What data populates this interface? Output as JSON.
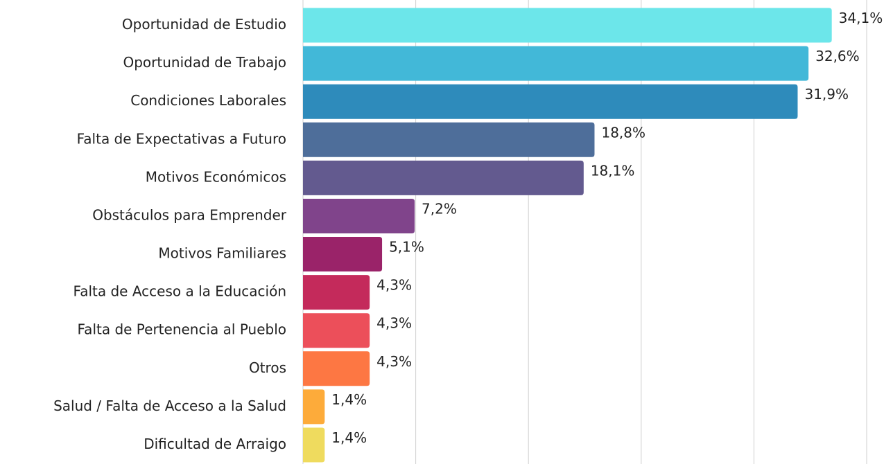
{
  "chart_data": {
    "type": "barh",
    "categories": [
      "Oportunidad de Estudio",
      "Oportunidad de Trabajo",
      "Condiciones Laborales",
      "Falta de Expectativas a Futuro",
      "Motivos Económicos",
      "Obstáculos para Emprender",
      "Motivos Familiares",
      "Falta de Acceso a la Educación",
      "Falta de Pertenencia al Pueblo",
      "Otros",
      "Salud / Falta de Acceso a la Salud",
      "Dificultad de Arraigo"
    ],
    "values": [
      34.1,
      32.6,
      31.9,
      18.8,
      18.1,
      7.2,
      5.1,
      4.3,
      4.3,
      4.3,
      1.4,
      1.4
    ],
    "value_labels": [
      "34,1%",
      "32,6%",
      "31,9%",
      "18,8%",
      "18,1%",
      "7,2%",
      "5,1%",
      "4,3%",
      "4,3%",
      "4,3%",
      "1,4%",
      "1,4%"
    ],
    "colors": [
      "#6ce6ea",
      "#42b8d8",
      "#2e8bbb",
      "#4e6e9a",
      "#635a8f",
      "#80448b",
      "#9a2369",
      "#c42a5b",
      "#ec4f5a",
      "#fd7743",
      "#fdab3a",
      "#efdb5e"
    ],
    "xlim": [
      0,
      36.35
    ],
    "xticks": [
      0,
      7.27,
      14.54,
      21.81,
      29.08,
      36.35
    ],
    "grid": true
  }
}
